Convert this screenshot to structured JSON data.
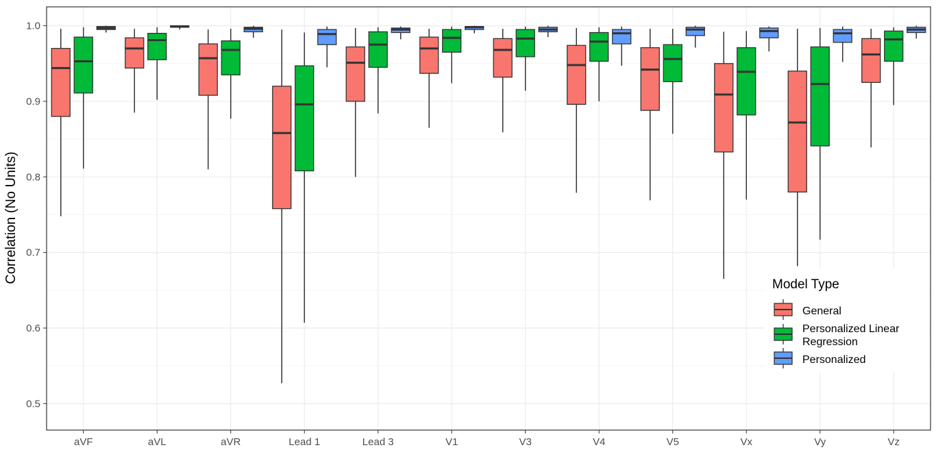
{
  "chart_data": {
    "type": "boxplot",
    "title": "",
    "xlabel": "",
    "ylabel": "Correlation (No Units)",
    "ylim": [
      0.465,
      1.025
    ],
    "yticks": [
      "0.5",
      "0.6",
      "0.7",
      "0.8",
      "0.9",
      "1.0"
    ],
    "ytick_values": [
      0.5,
      0.6,
      0.7,
      0.8,
      0.9,
      1.0
    ],
    "grid": true,
    "legend_position": "right-bottom inside",
    "categories": [
      "aVF",
      "aVL",
      "aVR",
      "Lead 1",
      "Lead 3",
      "V1",
      "V3",
      "V4",
      "V5",
      "Vx",
      "Vy",
      "Vz"
    ],
    "legend": {
      "title": "Model Type",
      "entries": [
        {
          "line1": "General",
          "line2": ""
        },
        {
          "line1": "Personalized Linear",
          "line2": "Regression"
        },
        {
          "line1": "Personalized",
          "line2": ""
        }
      ]
    },
    "series": [
      {
        "name": "General",
        "color": "#F8766D",
        "boxes": [
          {
            "min": 0.748,
            "q1": 0.88,
            "median": 0.944,
            "q3": 0.97,
            "max": 0.996
          },
          {
            "min": 0.885,
            "q1": 0.944,
            "median": 0.97,
            "q3": 0.984,
            "max": 0.996
          },
          {
            "min": 0.81,
            "q1": 0.908,
            "median": 0.957,
            "q3": 0.976,
            "max": 0.995
          },
          {
            "min": 0.527,
            "q1": 0.758,
            "median": 0.858,
            "q3": 0.92,
            "max": 0.995
          },
          {
            "min": 0.8,
            "q1": 0.9,
            "median": 0.951,
            "q3": 0.972,
            "max": 0.997
          },
          {
            "min": 0.865,
            "q1": 0.937,
            "median": 0.97,
            "q3": 0.985,
            "max": 0.996
          },
          {
            "min": 0.859,
            "q1": 0.932,
            "median": 0.968,
            "q3": 0.983,
            "max": 0.996
          },
          {
            "min": 0.779,
            "q1": 0.896,
            "median": 0.948,
            "q3": 0.974,
            "max": 0.997
          },
          {
            "min": 0.769,
            "q1": 0.888,
            "median": 0.942,
            "q3": 0.971,
            "max": 0.996
          },
          {
            "min": 0.665,
            "q1": 0.833,
            "median": 0.909,
            "q3": 0.95,
            "max": 0.992
          },
          {
            "min": 0.682,
            "q1": 0.78,
            "median": 0.872,
            "q3": 0.94,
            "max": 0.996
          },
          {
            "min": 0.839,
            "q1": 0.925,
            "median": 0.962,
            "q3": 0.983,
            "max": 0.996
          }
        ]
      },
      {
        "name": "Personalized Linear Regression",
        "color": "#00BA38",
        "boxes": [
          {
            "min": 0.811,
            "q1": 0.911,
            "median": 0.953,
            "q3": 0.985,
            "max": 0.998
          },
          {
            "min": 0.902,
            "q1": 0.955,
            "median": 0.981,
            "q3": 0.99,
            "max": 0.998
          },
          {
            "min": 0.877,
            "q1": 0.935,
            "median": 0.968,
            "q3": 0.98,
            "max": 0.996
          },
          {
            "min": 0.607,
            "q1": 0.808,
            "median": 0.896,
            "q3": 0.947,
            "max": 0.991
          },
          {
            "min": 0.884,
            "q1": 0.945,
            "median": 0.975,
            "q3": 0.992,
            "max": 0.998
          },
          {
            "min": 0.924,
            "q1": 0.965,
            "median": 0.984,
            "q3": 0.995,
            "max": 0.999
          },
          {
            "min": 0.914,
            "q1": 0.959,
            "median": 0.983,
            "q3": 0.995,
            "max": 0.999
          },
          {
            "min": 0.9,
            "q1": 0.953,
            "median": 0.979,
            "q3": 0.991,
            "max": 0.998
          },
          {
            "min": 0.857,
            "q1": 0.926,
            "median": 0.956,
            "q3": 0.975,
            "max": 0.996
          },
          {
            "min": 0.77,
            "q1": 0.882,
            "median": 0.939,
            "q3": 0.971,
            "max": 0.993
          },
          {
            "min": 0.717,
            "q1": 0.841,
            "median": 0.923,
            "q3": 0.972,
            "max": 0.997
          },
          {
            "min": 0.895,
            "q1": 0.953,
            "median": 0.982,
            "q3": 0.993,
            "max": 0.998
          }
        ]
      },
      {
        "name": "Personalized",
        "color": "#619CFF",
        "boxes": [
          {
            "min": 0.991,
            "q1": 0.995,
            "median": 0.997,
            "q3": 0.999,
            "max": 1.0
          },
          {
            "min": 0.995,
            "q1": 0.998,
            "median": 0.999,
            "q3": 1.0,
            "max": 1.0
          },
          {
            "min": 0.984,
            "q1": 0.992,
            "median": 0.996,
            "q3": 0.998,
            "max": 1.0
          },
          {
            "min": 0.945,
            "q1": 0.975,
            "median": 0.989,
            "q3": 0.995,
            "max": 0.999
          },
          {
            "min": 0.982,
            "q1": 0.991,
            "median": 0.995,
            "q3": 0.997,
            "max": 0.999
          },
          {
            "min": 0.99,
            "q1": 0.995,
            "median": 0.998,
            "q3": 0.999,
            "max": 1.0
          },
          {
            "min": 0.985,
            "q1": 0.992,
            "median": 0.995,
            "q3": 0.998,
            "max": 1.0
          },
          {
            "min": 0.947,
            "q1": 0.976,
            "median": 0.99,
            "q3": 0.995,
            "max": 0.999
          },
          {
            "min": 0.971,
            "q1": 0.987,
            "median": 0.995,
            "q3": 0.998,
            "max": 1.0
          },
          {
            "min": 0.966,
            "q1": 0.984,
            "median": 0.993,
            "q3": 0.997,
            "max": 0.999
          },
          {
            "min": 0.952,
            "q1": 0.978,
            "median": 0.99,
            "q3": 0.995,
            "max": 0.999
          },
          {
            "min": 0.983,
            "q1": 0.991,
            "median": 0.995,
            "q3": 0.998,
            "max": 1.0
          }
        ]
      }
    ]
  }
}
